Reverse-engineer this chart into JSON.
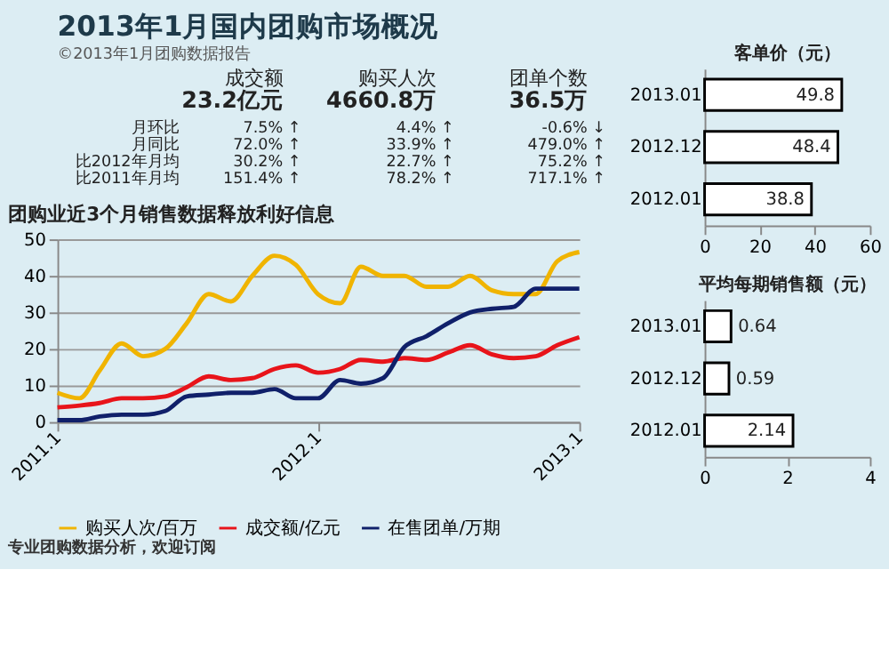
{
  "chart_data": [
    {
      "type": "other",
      "title": "2013年1月国内团购市场概况",
      "subtitle": "©2013年1月团购数据报告",
      "annotations": [
        "成交额",
        "购买人次",
        "团单个数",
        "23.2亿元",
        "4660.8万",
        "36.5万",
        "月环比",
        "7.5% ↑",
        "4.4% ↑",
        "-0.6% ↓",
        "月同比",
        "72.0% ↑",
        "33.9% ↑",
        "479.0% ↑",
        "比2012年月均",
        "30.2% ↑",
        "22.7% ↑",
        "75.2% ↑",
        "比2011年月均",
        "151.4% ↑",
        "78.2% ↑",
        "717.1% ↑"
      ]
    },
    {
      "type": "line",
      "title": "团购业近3个月销售数据释放利好信息",
      "x": [
        "2011-01",
        "2011-02",
        "2011-03",
        "2011-04",
        "2011-05",
        "2011-06",
        "2011-07",
        "2011-08",
        "2011-09",
        "2011-10",
        "2011-11",
        "2011-12",
        "2012-01",
        "2012-02",
        "2012-03",
        "2012-04",
        "2012-05",
        "2012-06",
        "2012-07",
        "2012-08",
        "2012-09",
        "2012-10",
        "2012-11",
        "2012-12",
        "2013-01"
      ],
      "series": [
        {
          "name": "购买人次/百万",
          "color": "#f0b400",
          "values": [
            8,
            6.5,
            14,
            21.5,
            18,
            20,
            27,
            35,
            33,
            40,
            45.5,
            43,
            35,
            32.5,
            42.5,
            40,
            40,
            37,
            37,
            40,
            36,
            35,
            35,
            44,
            46.5
          ]
        },
        {
          "name": "成交额/亿元",
          "color": "#e8141a",
          "values": [
            4,
            4.5,
            5.2,
            6.5,
            6.5,
            7,
            9.5,
            12.5,
            11.5,
            12,
            14.5,
            15.5,
            13.5,
            14.5,
            17,
            16.5,
            17.5,
            17,
            19,
            21,
            18.5,
            17.5,
            18,
            21,
            23.2
          ]
        },
        {
          "name": "在售团单/万期",
          "color": "#10206a",
          "values": [
            0.5,
            0.5,
            1.5,
            2,
            2,
            3,
            7,
            7.5,
            8,
            8,
            9,
            6.5,
            6.5,
            11.5,
            10.5,
            12,
            20.5,
            23.5,
            27,
            30,
            31,
            31.5,
            36.5,
            36.5,
            36.5
          ]
        }
      ],
      "xlim": [
        "2011-01",
        "2013-01"
      ],
      "xticks": [
        {
          "value": "2011-01",
          "label": "2011.1"
        },
        {
          "value": "2012-01",
          "label": "2012.1"
        },
        {
          "value": "2013-01",
          "label": "2013.1"
        }
      ],
      "ylim": [
        0,
        50
      ],
      "yticks": [
        0,
        10,
        20,
        30,
        40,
        50
      ],
      "grid": "y",
      "legend": "bottom",
      "annotations": [
        "专业团购数据分析，欢迎订阅"
      ]
    },
    {
      "type": "bar",
      "orientation": "horizontal",
      "title": "客单价（元）",
      "categories": [
        "2013.01",
        "2012.12",
        "2012.01"
      ],
      "values": [
        49.8,
        48.4,
        38.8
      ],
      "color": "#ffffff",
      "xlim": [
        0,
        60
      ],
      "xticks": [
        0,
        20,
        40,
        60
      ],
      "data_labels": true
    },
    {
      "type": "bar",
      "orientation": "horizontal",
      "title": "平均每期销售额（元）",
      "categories": [
        "2013.01",
        "2012.12",
        "2012.01"
      ],
      "values": [
        0.64,
        0.59,
        2.14
      ],
      "color": "#ffffff",
      "xlim": [
        0,
        4
      ],
      "xticks": [
        0,
        2,
        4
      ],
      "data_labels": true
    }
  ]
}
